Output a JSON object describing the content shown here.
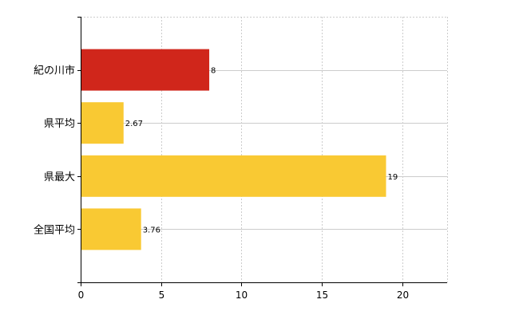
{
  "chart_data": {
    "type": "bar",
    "orientation": "horizontal",
    "categories": [
      "紀の川市",
      "県平均",
      "県最大",
      "全国平均"
    ],
    "values": [
      8,
      2.67,
      19,
      3.76
    ],
    "value_labels": [
      "8",
      "2.67",
      "19",
      "3.76"
    ],
    "bar_colors": [
      "#d0261b",
      "#f9c933",
      "#f9c933",
      "#f9c933"
    ],
    "xlim": [
      0,
      22.8
    ],
    "xticks": [
      0,
      5,
      10,
      15,
      20
    ],
    "xtick_labels": [
      "0",
      "5",
      "10",
      "15",
      "20"
    ],
    "grid": true,
    "legend": false,
    "title": "",
    "xlabel": "",
    "ylabel": ""
  },
  "colors": {
    "highlight": "#d0261b",
    "default_bar": "#f9c933",
    "grid": "#cccccc",
    "axis": "#000000"
  }
}
